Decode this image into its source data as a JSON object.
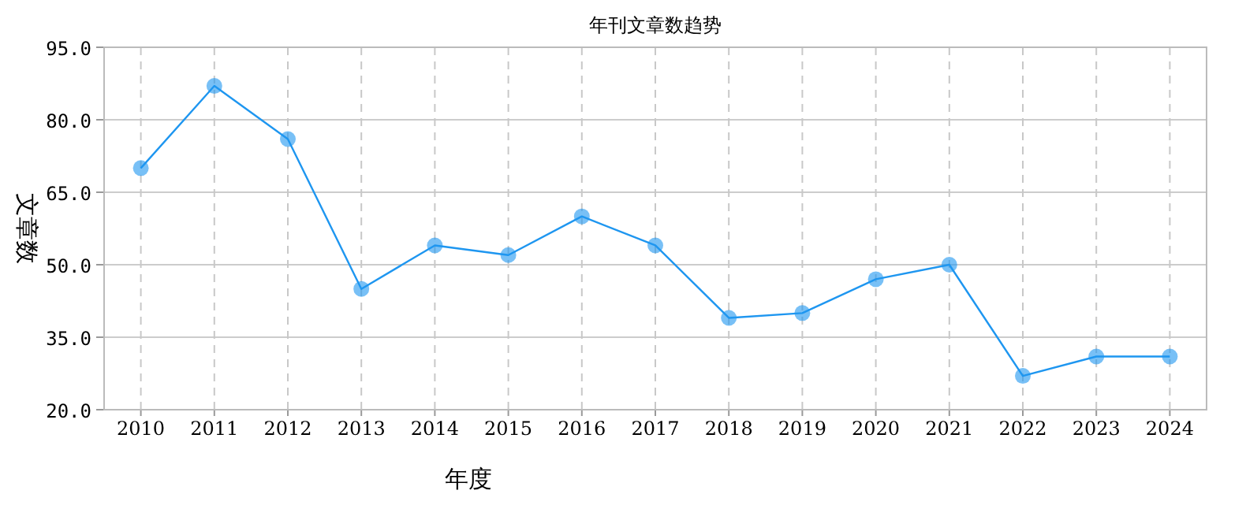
{
  "chart_data": {
    "type": "line",
    "title": "年刊文章数趋势",
    "xlabel": "年度",
    "ylabel": "文章数",
    "categories": [
      "2010",
      "2011",
      "2012",
      "2013",
      "2014",
      "2015",
      "2016",
      "2017",
      "2018",
      "2019",
      "2020",
      "2021",
      "2022",
      "2023",
      "2024"
    ],
    "series": [
      {
        "color": "#1e96f0",
        "values": [
          70,
          87,
          76,
          45,
          54,
          52,
          60,
          54,
          39,
          40,
          47,
          50,
          27,
          31,
          31
        ]
      }
    ],
    "ylim": [
      20,
      95
    ],
    "yticks": [
      {
        "value": 20,
        "label": "20.0"
      },
      {
        "value": 35,
        "label": "35.0"
      },
      {
        "value": 50,
        "label": "50.0"
      },
      {
        "value": 65,
        "label": "65.0"
      },
      {
        "value": 80,
        "label": "80.0"
      },
      {
        "value": 95,
        "label": "95.0"
      }
    ],
    "grid": true,
    "marker": "circle",
    "line_style": "solid"
  }
}
